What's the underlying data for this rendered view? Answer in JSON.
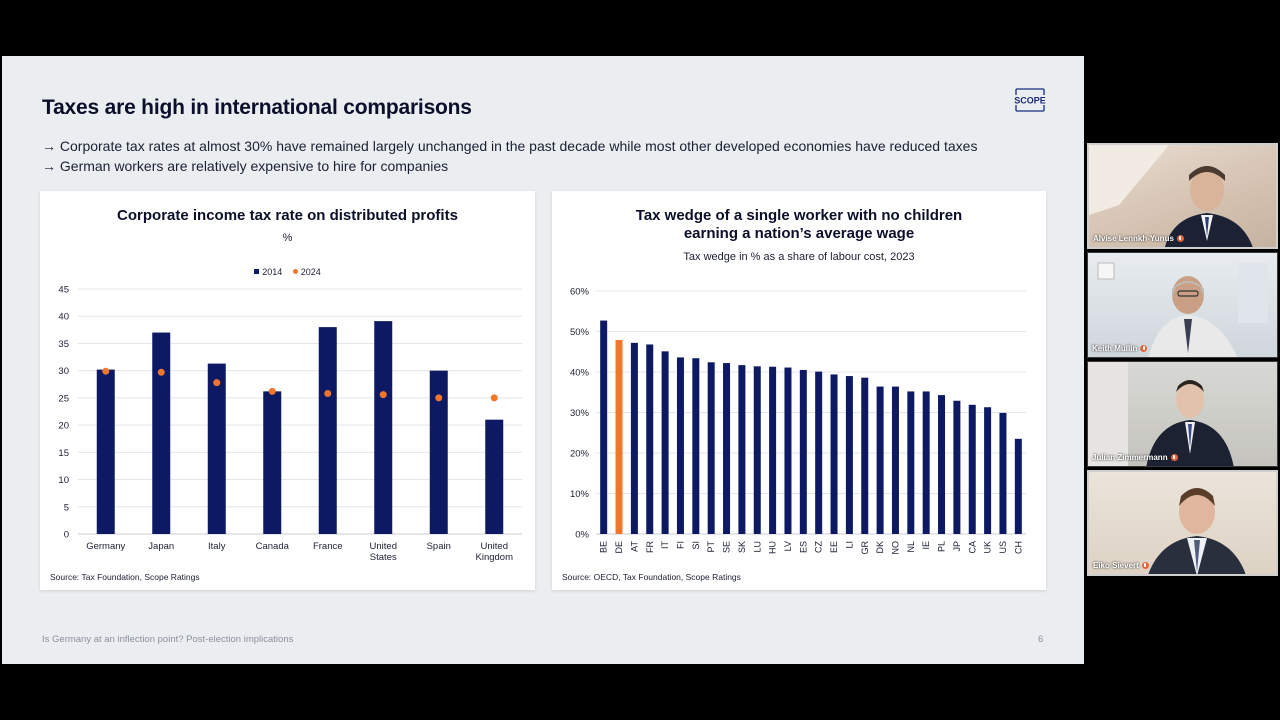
{
  "slide": {
    "title": "Taxes are high in international comparisons",
    "logo_text": "SCOPE",
    "bullets": [
      "→ Corporate tax rates at almost 30% have remained largely unchanged in the past decade while most other developed economies have reduced taxes",
      "→ German workers are relatively expensive to hire for companies"
    ],
    "footer": "Is Germany at an inflection point? Post-election implications",
    "page_number": "6"
  },
  "colors": {
    "navy": "#0d1a63",
    "orange": "#f0762b",
    "grid": "#e3e5ea"
  },
  "chart_data": [
    {
      "type": "bar",
      "title": "Corporate income tax rate on distributed profits",
      "subtitle": "%",
      "categories": [
        "Germany",
        "Japan",
        "Italy",
        "Canada",
        "France",
        "United States",
        "Spain",
        "United Kingdom"
      ],
      "series": [
        {
          "name": "2014",
          "kind": "bar",
          "values": [
            30.2,
            37.0,
            31.3,
            26.2,
            38.0,
            39.1,
            30.0,
            21.0
          ]
        },
        {
          "name": "2024",
          "kind": "dot",
          "values": [
            29.9,
            29.7,
            27.8,
            26.2,
            25.8,
            25.6,
            25.0,
            25.0
          ]
        }
      ],
      "ylim": [
        0,
        45
      ],
      "yticks": [
        0,
        5,
        10,
        15,
        20,
        25,
        30,
        35,
        40,
        45
      ],
      "legend": "top-center",
      "grid": true,
      "source": "Source: Tax Foundation, Scope Ratings"
    },
    {
      "type": "bar",
      "title": "Tax wedge of a single worker with no children earning a nation’s average wage",
      "subtitle": "Tax wedge in % as a share of labour cost, 2023",
      "categories": [
        "BE",
        "DE",
        "AT",
        "FR",
        "IT",
        "FI",
        "SI",
        "PT",
        "SE",
        "SK",
        "LU",
        "HU",
        "LV",
        "ES",
        "CZ",
        "EE",
        "LI",
        "GR",
        "DK",
        "NO",
        "NL",
        "IE",
        "PL",
        "JP",
        "CA",
        "UK",
        "US",
        "CH"
      ],
      "values": [
        52.7,
        47.9,
        47.2,
        46.8,
        45.1,
        43.6,
        43.4,
        42.4,
        42.2,
        41.7,
        41.4,
        41.3,
        41.1,
        40.5,
        40.1,
        39.4,
        39.0,
        38.6,
        36.4,
        36.4,
        35.2,
        35.2,
        34.3,
        32.9,
        31.9,
        31.3,
        29.9,
        23.5
      ],
      "highlight": "DE",
      "ylim": [
        0,
        60
      ],
      "yticks": [
        "0%",
        "10%",
        "20%",
        "30%",
        "40%",
        "50%",
        "60%"
      ],
      "grid": true,
      "source": "Source: OECD, Tax Foundation, Scope Ratings"
    }
  ],
  "participants": [
    {
      "name": "Alvise Lennkh-Yunus",
      "mic_icon": "mic-icon",
      "active": true
    },
    {
      "name": "Keith Mullin",
      "mic_icon": "mic-icon",
      "active": false
    },
    {
      "name": "Julian Zimmermann",
      "mic_icon": "mic-icon",
      "active": false
    },
    {
      "name": "Eiko Sievert",
      "mic_icon": "mic-icon",
      "active": true
    }
  ]
}
